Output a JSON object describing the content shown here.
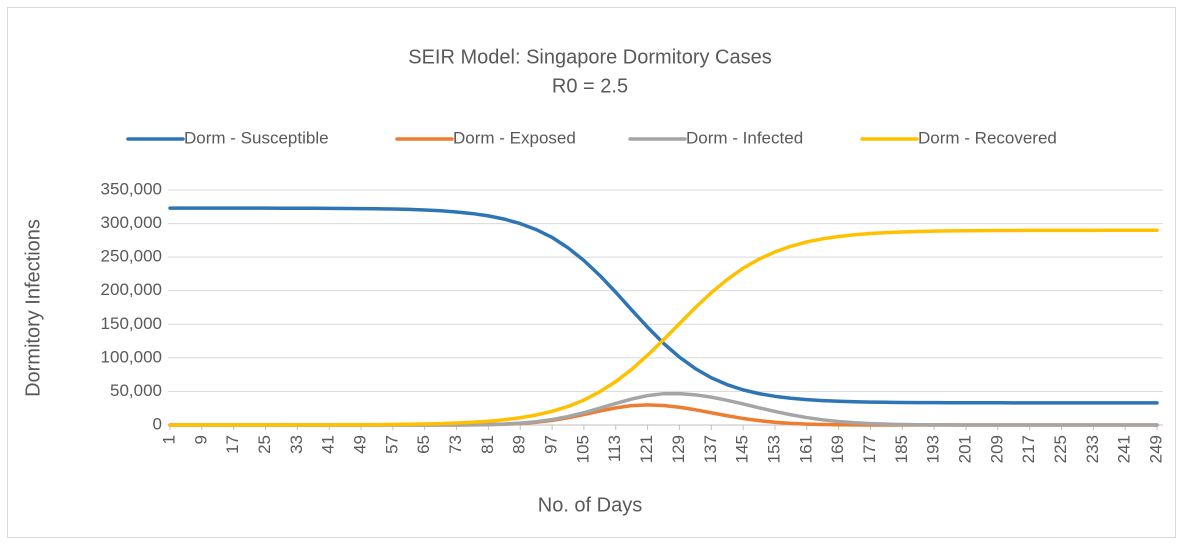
{
  "chart_data": {
    "type": "line",
    "title": "SEIR Model: Singapore Dormitory Cases",
    "subtitle": "R0 = 2.5",
    "x_label": "No. of Days",
    "y_label": "Dormitory Infections",
    "x": [
      1,
      5,
      9,
      13,
      17,
      21,
      25,
      29,
      33,
      37,
      41,
      45,
      49,
      53,
      57,
      61,
      65,
      69,
      73,
      77,
      81,
      85,
      89,
      93,
      97,
      101,
      105,
      109,
      113,
      117,
      121,
      125,
      129,
      133,
      137,
      141,
      145,
      149,
      153,
      157,
      161,
      165,
      169,
      173,
      177,
      181,
      185,
      189,
      193,
      197,
      201,
      205,
      209,
      213,
      217,
      221,
      225,
      229,
      233,
      237,
      241,
      245,
      249
    ],
    "series": [
      {
        "name": "Dorm - Susceptible",
        "color": "#2E75B6",
        "values": [
          323000,
          322990,
          322980,
          322975,
          322965,
          322950,
          322925,
          322895,
          322850,
          322780,
          322680,
          322540,
          322345,
          322060,
          321640,
          321060,
          320230,
          319000,
          317300,
          314880,
          311440,
          306660,
          299960,
          291000,
          279400,
          263900,
          245000,
          222700,
          197700,
          171400,
          145600,
          121700,
          101100,
          84000,
          70400,
          60100,
          52300,
          46700,
          42700,
          39800,
          37800,
          36300,
          35300,
          34600,
          34100,
          33800,
          33550,
          33380,
          33260,
          33180,
          33120,
          33090,
          33060,
          33040,
          33030,
          33020,
          33015,
          33010,
          33010,
          33005,
          33005,
          33000,
          33000
        ]
      },
      {
        "name": "Dorm - Exposed",
        "color": "#ED7D31",
        "values": [
          0,
          0,
          0,
          0,
          0,
          0,
          0,
          0,
          0,
          0,
          0,
          0,
          0,
          0,
          1,
          3,
          10,
          30,
          84,
          215,
          507,
          1100,
          2200,
          4060,
          6900,
          10800,
          15600,
          20790,
          25480,
          28800,
          30000,
          29080,
          26480,
          22650,
          18200,
          13740,
          9740,
          6490,
          4060,
          2390,
          1320,
          684,
          333,
          153,
          66,
          27,
          10,
          4,
          0,
          0,
          0,
          0,
          0,
          0,
          0,
          0,
          0,
          0,
          0,
          0,
          0,
          0,
          0
        ]
      },
      {
        "name": "Dorm - Infected",
        "color": "#A5A5A5",
        "values": [
          0,
          0,
          0,
          0,
          0,
          0,
          0,
          0,
          0,
          0,
          0,
          0,
          0,
          0,
          0,
          10,
          26,
          66,
          157,
          357,
          756,
          1500,
          2800,
          4920,
          8100,
          12550,
          18300,
          24960,
          32050,
          38670,
          43800,
          46630,
          46770,
          44930,
          41480,
          36790,
          31350,
          25660,
          20190,
          15260,
          11080,
          7730,
          5180,
          3340,
          2065,
          1227,
          700,
          385,
          203,
          103,
          50,
          24,
          11,
          4,
          0,
          0,
          0,
          0,
          0,
          0,
          0,
          0,
          0
        ]
      },
      {
        "name": "Dorm - Recovered",
        "color": "#FFC000",
        "values": [
          7,
          10,
          14,
          20,
          28,
          39,
          54,
          76,
          105,
          148,
          206,
          287,
          402,
          559,
          778,
          1090,
          1520,
          2100,
          2940,
          4080,
          5640,
          7860,
          10800,
          14900,
          20400,
          27600,
          37100,
          49600,
          64600,
          82800,
          103900,
          127000,
          151000,
          174800,
          197000,
          216600,
          233500,
          247000,
          257800,
          266200,
          272600,
          277300,
          280800,
          283300,
          285200,
          286500,
          287500,
          288200,
          288700,
          289100,
          289300,
          289500,
          289640,
          289740,
          289810,
          289860,
          289900,
          289930,
          289950,
          289960,
          289970,
          289980,
          289985
        ]
      }
    ],
    "xlim": [
      0.5,
      250.5
    ],
    "xticks": [
      1,
      9,
      17,
      25,
      33,
      41,
      49,
      57,
      65,
      73,
      81,
      89,
      97,
      105,
      113,
      121,
      129,
      137,
      145,
      153,
      161,
      169,
      177,
      185,
      193,
      201,
      209,
      217,
      225,
      233,
      241,
      249
    ],
    "ylim": [
      0,
      350000
    ],
    "yticks": [
      0,
      {
        "value": 50000,
        "label": "50,000"
      },
      {
        "value": 100000,
        "label": "100,000"
      },
      {
        "value": 150000,
        "label": "150,000"
      },
      {
        "value": 200000,
        "label": "200,000"
      },
      {
        "value": 250000,
        "label": "250,000"
      },
      {
        "value": 300000,
        "label": "300,000"
      },
      {
        "value": 350000,
        "label": "350,000"
      }
    ],
    "grid": true,
    "legend": "top"
  }
}
